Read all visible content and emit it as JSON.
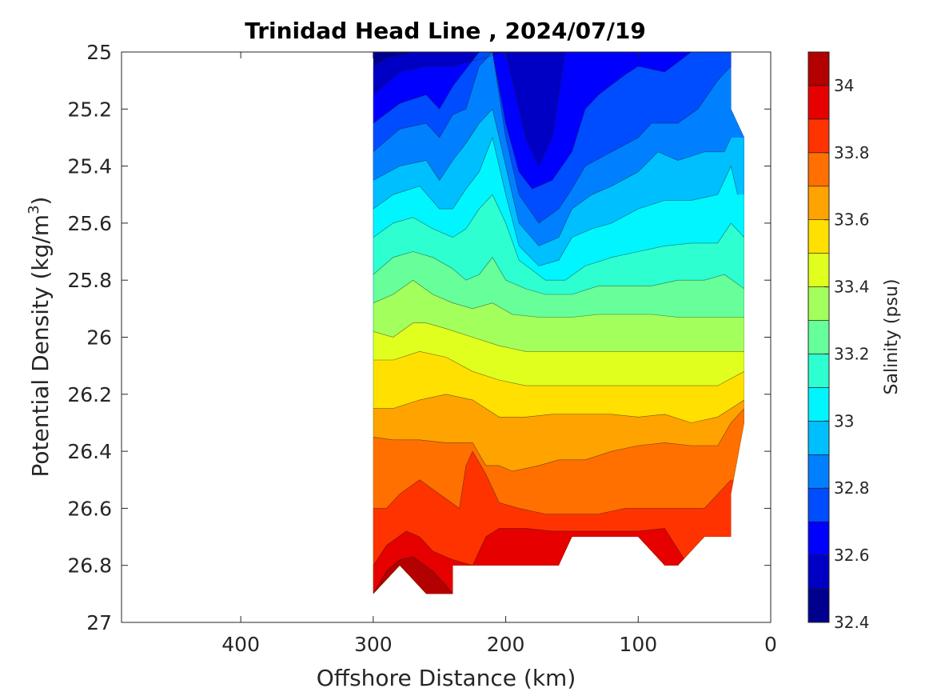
{
  "chart_data": {
    "type": "filled-contour",
    "title": "Trinidad Head Line , 2024/07/19",
    "xlabel": "Offshore Distance (km)",
    "ylabel_main": "Potential Density (kg/m",
    "ylabel_sup": "3",
    "ylabel_close": ")",
    "xlim": [
      490,
      0
    ],
    "ylim": [
      25,
      27
    ],
    "x_ticks": [
      400,
      300,
      200,
      100,
      0
    ],
    "x_tick_labels": [
      "400",
      "300",
      "200",
      "100",
      "0"
    ],
    "y_ticks": [
      25,
      25.2,
      25.4,
      25.6,
      25.8,
      26,
      26.2,
      26.4,
      26.6,
      26.8,
      27
    ],
    "y_tick_labels": [
      "25",
      "25.2",
      "25.4",
      "25.6",
      "25.8",
      "26",
      "26.2",
      "26.4",
      "26.6",
      "26.8",
      "27"
    ],
    "colorbar": {
      "title": "Salinity (psu)",
      "range": [
        32.4,
        34.1
      ],
      "ticks": [
        32.4,
        32.6,
        32.8,
        33,
        33.2,
        33.4,
        33.6,
        33.8,
        34
      ],
      "tick_labels": [
        "32.4",
        "32.6",
        "32.8",
        "33",
        "33.2",
        "33.4",
        "33.6",
        "33.8",
        "34"
      ],
      "colors": [
        "#00008f",
        "#0000c4",
        "#0000ff",
        "#004cff",
        "#0080ff",
        "#00bfff",
        "#00f5ff",
        "#2effd0",
        "#66ff99",
        "#a3ff5c",
        "#e0ff1f",
        "#ffe000",
        "#ffa300",
        "#ff7000",
        "#ff3300",
        "#e60000",
        "#b30000"
      ]
    },
    "data_x": [
      300,
      280,
      260,
      240,
      220,
      200,
      180,
      160,
      140,
      120,
      100,
      80,
      60,
      40,
      20
    ],
    "boundary": {
      "top": [
        [
          300,
          25
        ],
        [
          30,
          25
        ],
        [
          30,
          25.2
        ],
        [
          20,
          25.3
        ],
        [
          20,
          26.3
        ],
        [
          30,
          26.55
        ],
        [
          30,
          26.7
        ],
        [
          40,
          26.7
        ],
        [
          50,
          26.7
        ],
        [
          70,
          26.8
        ],
        [
          80,
          26.8
        ],
        [
          100,
          26.7
        ],
        [
          150,
          26.7
        ],
        [
          160,
          26.8
        ],
        [
          240,
          26.8
        ],
        [
          240,
          26.9
        ],
        [
          260,
          26.9
        ],
        [
          280,
          26.8
        ],
        [
          300,
          26.9
        ]
      ]
    },
    "contour_levels": [
      {
        "level": 32.6,
        "pts": [
          [
            300,
            25.05
          ],
          [
            290,
            25.02
          ],
          [
            270,
            25.0
          ],
          [
            180,
            25.0
          ],
          [
            170,
            25.0
          ],
          [
            160,
            25.0
          ]
        ]
      },
      {
        "level": 32.7,
        "pts": [
          [
            300,
            25.15
          ],
          [
            280,
            25.07
          ],
          [
            260,
            25.05
          ],
          [
            240,
            25.05
          ],
          [
            200,
            25.0
          ],
          [
            195,
            25.1
          ],
          [
            185,
            25.3
          ],
          [
            175,
            25.4
          ],
          [
            165,
            25.3
          ],
          [
            160,
            25.15
          ],
          [
            155,
            25.0
          ]
        ]
      },
      {
        "level": 32.8,
        "pts": [
          [
            300,
            25.25
          ],
          [
            280,
            25.18
          ],
          [
            260,
            25.15
          ],
          [
            250,
            25.2
          ],
          [
            240,
            25.12
          ],
          [
            220,
            25.0
          ],
          [
            210,
            25.0
          ],
          [
            200,
            25.25
          ],
          [
            190,
            25.42
          ],
          [
            180,
            25.48
          ],
          [
            165,
            25.45
          ],
          [
            150,
            25.35
          ],
          [
            140,
            25.2
          ],
          [
            130,
            25.15
          ],
          [
            110,
            25.08
          ],
          [
            100,
            25.05
          ],
          [
            80,
            25.07
          ],
          [
            60,
            25.0
          ]
        ]
      },
      {
        "level": 32.9,
        "pts": [
          [
            300,
            25.35
          ],
          [
            280,
            25.27
          ],
          [
            260,
            25.25
          ],
          [
            250,
            25.3
          ],
          [
            240,
            25.22
          ],
          [
            230,
            25.2
          ],
          [
            220,
            25.05
          ],
          [
            210,
            25.0
          ],
          [
            200,
            25.3
          ],
          [
            190,
            25.5
          ],
          [
            175,
            25.6
          ],
          [
            160,
            25.55
          ],
          [
            150,
            25.48
          ],
          [
            140,
            25.4
          ],
          [
            120,
            25.35
          ],
          [
            100,
            25.3
          ],
          [
            90,
            25.25
          ],
          [
            70,
            25.25
          ],
          [
            55,
            25.2
          ],
          [
            40,
            25.1
          ],
          [
            30,
            25.05
          ]
        ]
      },
      {
        "level": 33.0,
        "pts": [
          [
            300,
            25.45
          ],
          [
            280,
            25.4
          ],
          [
            260,
            25.38
          ],
          [
            250,
            25.45
          ],
          [
            240,
            25.38
          ],
          [
            230,
            25.32
          ],
          [
            220,
            25.25
          ],
          [
            210,
            25.2
          ],
          [
            200,
            25.4
          ],
          [
            190,
            25.6
          ],
          [
            175,
            25.68
          ],
          [
            160,
            25.65
          ],
          [
            150,
            25.55
          ],
          [
            135,
            25.5
          ],
          [
            120,
            25.47
          ],
          [
            100,
            25.42
          ],
          [
            85,
            25.35
          ],
          [
            70,
            25.38
          ],
          [
            50,
            25.35
          ],
          [
            35,
            25.35
          ],
          [
            30,
            25.3
          ]
        ]
      },
      {
        "level": 33.1,
        "pts": [
          [
            300,
            25.55
          ],
          [
            285,
            25.5
          ],
          [
            265,
            25.47
          ],
          [
            250,
            25.55
          ],
          [
            240,
            25.55
          ],
          [
            230,
            25.48
          ],
          [
            220,
            25.42
          ],
          [
            210,
            25.3
          ],
          [
            200,
            25.5
          ],
          [
            190,
            25.68
          ],
          [
            175,
            25.75
          ],
          [
            160,
            25.73
          ],
          [
            150,
            25.65
          ],
          [
            135,
            25.62
          ],
          [
            120,
            25.6
          ],
          [
            100,
            25.55
          ],
          [
            80,
            25.52
          ],
          [
            60,
            25.52
          ],
          [
            40,
            25.5
          ],
          [
            30,
            25.4
          ],
          [
            25,
            25.5
          ]
        ]
      },
      {
        "level": 33.2,
        "pts": [
          [
            300,
            25.65
          ],
          [
            285,
            25.6
          ],
          [
            270,
            25.58
          ],
          [
            255,
            25.62
          ],
          [
            240,
            25.65
          ],
          [
            230,
            25.62
          ],
          [
            220,
            25.55
          ],
          [
            210,
            25.5
          ],
          [
            200,
            25.6
          ],
          [
            190,
            25.73
          ],
          [
            170,
            25.8
          ],
          [
            155,
            25.8
          ],
          [
            140,
            25.75
          ],
          [
            120,
            25.72
          ],
          [
            100,
            25.7
          ],
          [
            80,
            25.68
          ],
          [
            60,
            25.67
          ],
          [
            40,
            25.67
          ],
          [
            30,
            25.6
          ],
          [
            20,
            25.65
          ]
        ]
      },
      {
        "level": 33.3,
        "pts": [
          [
            300,
            25.78
          ],
          [
            285,
            25.72
          ],
          [
            270,
            25.7
          ],
          [
            255,
            25.72
          ],
          [
            240,
            25.76
          ],
          [
            230,
            25.8
          ],
          [
            220,
            25.78
          ],
          [
            210,
            25.72
          ],
          [
            200,
            25.8
          ],
          [
            185,
            25.83
          ],
          [
            170,
            25.85
          ],
          [
            150,
            25.85
          ],
          [
            130,
            25.82
          ],
          [
            110,
            25.82
          ],
          [
            90,
            25.82
          ],
          [
            70,
            25.8
          ],
          [
            50,
            25.8
          ],
          [
            35,
            25.78
          ],
          [
            20,
            25.83
          ]
        ]
      },
      {
        "level": 33.4,
        "pts": [
          [
            300,
            25.88
          ],
          [
            285,
            25.85
          ],
          [
            270,
            25.8
          ],
          [
            255,
            25.85
          ],
          [
            240,
            25.88
          ],
          [
            225,
            25.9
          ],
          [
            210,
            25.88
          ],
          [
            195,
            25.92
          ],
          [
            175,
            25.93
          ],
          [
            150,
            25.93
          ],
          [
            130,
            25.92
          ],
          [
            110,
            25.92
          ],
          [
            90,
            25.92
          ],
          [
            70,
            25.93
          ],
          [
            50,
            25.93
          ],
          [
            20,
            25.93
          ]
        ]
      },
      {
        "level": 33.5,
        "pts": [
          [
            300,
            25.98
          ],
          [
            285,
            26.0
          ],
          [
            270,
            25.95
          ],
          [
            260,
            25.95
          ],
          [
            245,
            25.97
          ],
          [
            225,
            26.0
          ],
          [
            205,
            26.03
          ],
          [
            185,
            26.05
          ],
          [
            160,
            26.05
          ],
          [
            130,
            26.05
          ],
          [
            100,
            26.05
          ],
          [
            70,
            26.05
          ],
          [
            50,
            26.05
          ],
          [
            20,
            26.05
          ]
        ]
      },
      {
        "level": 33.6,
        "pts": [
          [
            300,
            26.08
          ],
          [
            285,
            26.08
          ],
          [
            265,
            26.05
          ],
          [
            245,
            26.07
          ],
          [
            225,
            26.12
          ],
          [
            205,
            26.15
          ],
          [
            185,
            26.17
          ],
          [
            165,
            26.17
          ],
          [
            140,
            26.17
          ],
          [
            120,
            26.17
          ],
          [
            100,
            26.17
          ],
          [
            80,
            26.17
          ],
          [
            60,
            26.17
          ],
          [
            40,
            26.17
          ],
          [
            20,
            26.12
          ]
        ]
      },
      {
        "level": 33.7,
        "pts": [
          [
            300,
            26.25
          ],
          [
            285,
            26.25
          ],
          [
            265,
            26.22
          ],
          [
            245,
            26.2
          ],
          [
            225,
            26.22
          ],
          [
            205,
            26.28
          ],
          [
            185,
            26.28
          ],
          [
            165,
            26.27
          ],
          [
            140,
            26.27
          ],
          [
            120,
            26.27
          ],
          [
            100,
            26.28
          ],
          [
            80,
            26.27
          ],
          [
            60,
            26.3
          ],
          [
            40,
            26.28
          ],
          [
            30,
            26.25
          ],
          [
            20,
            26.22
          ]
        ]
      },
      {
        "level": 33.8,
        "pts": [
          [
            300,
            26.35
          ],
          [
            285,
            26.36
          ],
          [
            265,
            26.36
          ],
          [
            245,
            26.37
          ],
          [
            225,
            26.37
          ],
          [
            215,
            26.45
          ],
          [
            205,
            26.45
          ],
          [
            195,
            26.47
          ],
          [
            175,
            26.45
          ],
          [
            160,
            26.43
          ],
          [
            140,
            26.43
          ],
          [
            120,
            26.4
          ],
          [
            100,
            26.38
          ],
          [
            80,
            26.37
          ],
          [
            60,
            26.38
          ],
          [
            40,
            26.38
          ],
          [
            30,
            26.3
          ],
          [
            20,
            26.25
          ]
        ]
      },
      {
        "level": 33.9,
        "pts": [
          [
            300,
            26.6
          ],
          [
            290,
            26.6
          ],
          [
            280,
            26.55
          ],
          [
            265,
            26.5
          ],
          [
            250,
            26.55
          ],
          [
            235,
            26.6
          ],
          [
            230,
            26.45
          ],
          [
            225,
            26.4
          ],
          [
            215,
            26.48
          ],
          [
            205,
            26.58
          ],
          [
            190,
            26.6
          ],
          [
            170,
            26.62
          ],
          [
            150,
            26.62
          ],
          [
            130,
            26.62
          ],
          [
            110,
            26.6
          ],
          [
            90,
            26.6
          ],
          [
            70,
            26.6
          ],
          [
            50,
            26.6
          ],
          [
            40,
            26.55
          ],
          [
            30,
            26.5
          ]
        ]
      },
      {
        "level": 34.0,
        "pts": [
          [
            300,
            26.8
          ],
          [
            290,
            26.73
          ],
          [
            275,
            26.68
          ],
          [
            265,
            26.7
          ],
          [
            255,
            26.75
          ],
          [
            240,
            26.78
          ],
          [
            225,
            26.8
          ],
          [
            215,
            26.7
          ],
          [
            205,
            26.67
          ],
          [
            185,
            26.67
          ],
          [
            165,
            26.68
          ],
          [
            145,
            26.68
          ],
          [
            125,
            26.68
          ],
          [
            100,
            26.68
          ],
          [
            80,
            26.67
          ],
          [
            65,
            26.78
          ],
          [
            55,
            26.75
          ]
        ]
      },
      {
        "level": 34.1,
        "pts": [
          [
            300,
            26.9
          ],
          [
            290,
            26.82
          ],
          [
            280,
            26.78
          ],
          [
            270,
            26.77
          ],
          [
            255,
            26.82
          ],
          [
            245,
            26.87
          ],
          [
            240,
            26.9
          ]
        ]
      }
    ]
  }
}
